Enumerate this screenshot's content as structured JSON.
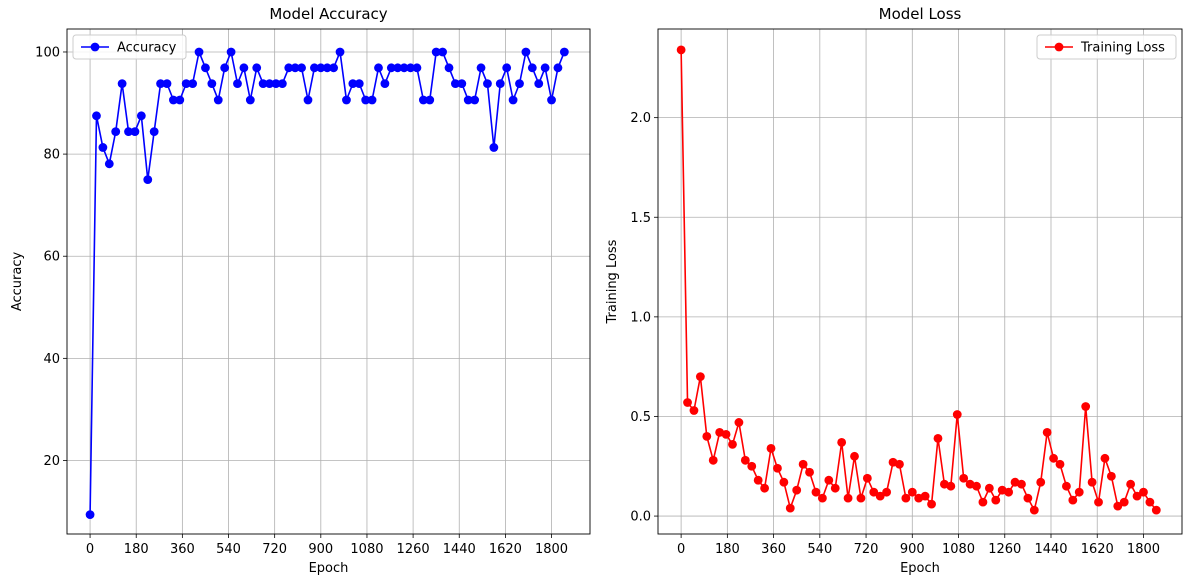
{
  "chart_data": [
    {
      "type": "line",
      "title": "Model Accuracy",
      "xlabel": "Epoch",
      "ylabel": "Accuracy",
      "xlim": [
        -90,
        1950
      ],
      "ylim": [
        5.6,
        104.5
      ],
      "xticks": [
        0,
        180,
        360,
        540,
        720,
        900,
        1080,
        1260,
        1440,
        1620,
        1800
      ],
      "yticks": [
        20,
        40,
        60,
        80,
        100
      ],
      "grid": true,
      "legend": "upper left",
      "series": [
        {
          "name": "Accuracy",
          "color": "#0000ff",
          "marker": "circle",
          "x": [
            0,
            25,
            50,
            75,
            100,
            125,
            150,
            175,
            200,
            225,
            250,
            275,
            300,
            325,
            350,
            375,
            400,
            425,
            450,
            475,
            500,
            525,
            550,
            575,
            600,
            625,
            650,
            675,
            700,
            725,
            750,
            775,
            800,
            825,
            850,
            875,
            900,
            925,
            950,
            975,
            1000,
            1025,
            1050,
            1075,
            1100,
            1125,
            1150,
            1175,
            1200,
            1225,
            1250,
            1275,
            1300,
            1325,
            1350,
            1375,
            1400,
            1425,
            1450,
            1475,
            1500,
            1525,
            1550,
            1575,
            1600,
            1625,
            1650,
            1675,
            1700,
            1725,
            1750,
            1775,
            1800,
            1825,
            1850
          ],
          "values": [
            9.4,
            87.5,
            81.3,
            78.1,
            84.4,
            93.8,
            84.4,
            84.4,
            87.5,
            75,
            84.4,
            93.8,
            93.8,
            90.6,
            90.6,
            93.8,
            93.8,
            100,
            96.9,
            93.8,
            90.6,
            96.9,
            100,
            93.8,
            96.9,
            90.6,
            96.9,
            93.8,
            93.8,
            93.8,
            93.8,
            96.9,
            96.9,
            96.9,
            90.6,
            96.9,
            96.9,
            96.9,
            96.9,
            100,
            90.6,
            93.8,
            93.8,
            90.6,
            90.6,
            96.9,
            93.8,
            96.9,
            96.9,
            96.9,
            96.9,
            96.9,
            90.6,
            90.6,
            100,
            100,
            96.9,
            93.8,
            93.8,
            90.6,
            90.6,
            96.9,
            93.8,
            81.3,
            93.8,
            96.9,
            90.6,
            93.8,
            100,
            96.9,
            93.8,
            96.9,
            90.6,
            96.9,
            100
          ]
        }
      ]
    },
    {
      "type": "line",
      "title": "Model Loss",
      "xlabel": "Epoch",
      "ylabel": "Training Loss",
      "xlim": [
        -90,
        1950
      ],
      "ylim": [
        -0.09,
        2.445
      ],
      "xticks": [
        0,
        180,
        360,
        540,
        720,
        900,
        1080,
        1260,
        1440,
        1620,
        1800
      ],
      "yticks": [
        0.0,
        0.5,
        1.0,
        1.5,
        2.0
      ],
      "ytick_labels": [
        "0.0",
        "0.5",
        "1.0",
        "1.5",
        "2.0"
      ],
      "grid": true,
      "legend": "upper right",
      "series": [
        {
          "name": "Training Loss",
          "color": "#ff0000",
          "marker": "circle",
          "x": [
            0,
            25,
            50,
            75,
            100,
            125,
            150,
            175,
            200,
            225,
            250,
            275,
            300,
            325,
            350,
            375,
            400,
            425,
            450,
            475,
            500,
            525,
            550,
            575,
            600,
            625,
            650,
            675,
            700,
            725,
            750,
            775,
            800,
            825,
            850,
            875,
            900,
            925,
            950,
            975,
            1000,
            1025,
            1050,
            1075,
            1100,
            1125,
            1150,
            1175,
            1200,
            1225,
            1250,
            1275,
            1300,
            1325,
            1350,
            1375,
            1400,
            1425,
            1450,
            1475,
            1500,
            1525,
            1550,
            1575,
            1600,
            1625,
            1650,
            1675,
            1700,
            1725,
            1750,
            1775,
            1800,
            1825,
            1850
          ],
          "values": [
            2.34,
            0.57,
            0.53,
            0.7,
            0.4,
            0.28,
            0.42,
            0.41,
            0.36,
            0.47,
            0.28,
            0.25,
            0.18,
            0.14,
            0.34,
            0.24,
            0.17,
            0.04,
            0.13,
            0.26,
            0.22,
            0.12,
            0.09,
            0.18,
            0.14,
            0.37,
            0.09,
            0.3,
            0.09,
            0.19,
            0.12,
            0.1,
            0.12,
            0.27,
            0.26,
            0.09,
            0.12,
            0.09,
            0.1,
            0.06,
            0.39,
            0.16,
            0.15,
            0.51,
            0.19,
            0.16,
            0.15,
            0.07,
            0.14,
            0.08,
            0.13,
            0.12,
            0.17,
            0.16,
            0.09,
            0.03,
            0.17,
            0.42,
            0.29,
            0.26,
            0.15,
            0.08,
            0.12,
            0.55,
            0.17,
            0.07,
            0.29,
            0.2,
            0.05,
            0.07,
            0.16,
            0.1,
            0.12,
            0.07,
            0.03
          ]
        }
      ]
    }
  ]
}
